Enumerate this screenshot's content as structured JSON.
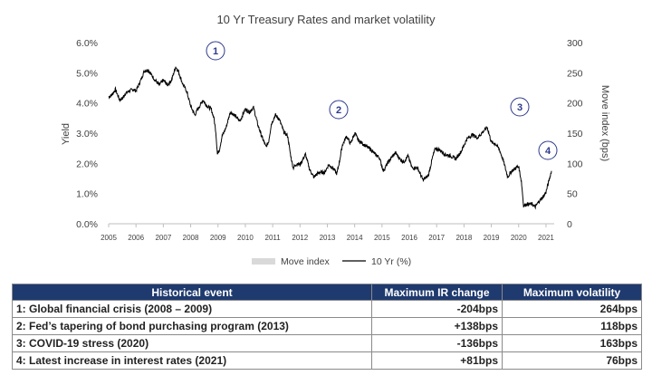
{
  "chart_data": {
    "type": "line",
    "title": "10 Yr Treasury Rates and market volatility",
    "ylabel": "Yield",
    "y2label": "Move index (bps)",
    "xlabel": "",
    "ylim": [
      0,
      6
    ],
    "y2lim": [
      0,
      300
    ],
    "xlim": [
      2005.0,
      2021.3
    ],
    "x_ticks": [
      "2005",
      "2006",
      "2007",
      "2008",
      "2009",
      "2010",
      "2011",
      "2012",
      "2013",
      "2014",
      "2015",
      "2016",
      "2017",
      "2018",
      "2019",
      "2020",
      "2021"
    ],
    "y_ticks": [
      "0.0%",
      "1.0%",
      "2.0%",
      "3.0%",
      "4.0%",
      "5.0%",
      "6.0%"
    ],
    "y2_ticks": [
      "0",
      "50",
      "100",
      "150",
      "200",
      "250",
      "300"
    ],
    "legend": [
      "Move index",
      "10 Yr (%)"
    ],
    "legend_position": "bottom",
    "series": [
      {
        "name": "10 Yr (%)",
        "color": "#000000",
        "points": [
          [
            2005.0,
            4.2
          ],
          [
            2005.1,
            4.25
          ],
          [
            2005.25,
            4.45
          ],
          [
            2005.4,
            4.1
          ],
          [
            2005.5,
            4.15
          ],
          [
            2005.6,
            4.3
          ],
          [
            2005.75,
            4.4
          ],
          [
            2005.9,
            4.45
          ],
          [
            2006.0,
            4.4
          ],
          [
            2006.15,
            4.7
          ],
          [
            2006.3,
            5.05
          ],
          [
            2006.45,
            5.1
          ],
          [
            2006.55,
            4.95
          ],
          [
            2006.7,
            4.75
          ],
          [
            2006.85,
            4.6
          ],
          [
            2007.0,
            4.75
          ],
          [
            2007.15,
            4.6
          ],
          [
            2007.3,
            4.75
          ],
          [
            2007.45,
            5.2
          ],
          [
            2007.55,
            5.05
          ],
          [
            2007.7,
            4.65
          ],
          [
            2007.85,
            4.4
          ],
          [
            2008.0,
            3.9
          ],
          [
            2008.15,
            3.6
          ],
          [
            2008.3,
            3.85
          ],
          [
            2008.45,
            4.1
          ],
          [
            2008.6,
            3.9
          ],
          [
            2008.75,
            3.8
          ],
          [
            2008.85,
            3.5
          ],
          [
            2008.92,
            3.05
          ],
          [
            2008.98,
            2.3
          ],
          [
            2009.05,
            2.45
          ],
          [
            2009.15,
            2.9
          ],
          [
            2009.3,
            3.2
          ],
          [
            2009.45,
            3.7
          ],
          [
            2009.6,
            3.6
          ],
          [
            2009.8,
            3.4
          ],
          [
            2010.0,
            3.8
          ],
          [
            2010.15,
            3.7
          ],
          [
            2010.3,
            3.85
          ],
          [
            2010.45,
            3.3
          ],
          [
            2010.6,
            2.9
          ],
          [
            2010.75,
            2.55
          ],
          [
            2010.85,
            2.7
          ],
          [
            2010.95,
            3.3
          ],
          [
            2011.1,
            3.6
          ],
          [
            2011.25,
            3.45
          ],
          [
            2011.4,
            3.05
          ],
          [
            2011.55,
            2.9
          ],
          [
            2011.65,
            2.3
          ],
          [
            2011.75,
            1.85
          ],
          [
            2011.9,
            2.0
          ],
          [
            2012.0,
            1.95
          ],
          [
            2012.2,
            2.3
          ],
          [
            2012.35,
            1.8
          ],
          [
            2012.5,
            1.55
          ],
          [
            2012.7,
            1.7
          ],
          [
            2012.9,
            1.7
          ],
          [
            2013.05,
            1.95
          ],
          [
            2013.2,
            1.85
          ],
          [
            2013.35,
            1.65
          ],
          [
            2013.45,
            2.1
          ],
          [
            2013.55,
            2.6
          ],
          [
            2013.7,
            2.9
          ],
          [
            2013.85,
            2.65
          ],
          [
            2014.0,
            3.0
          ],
          [
            2014.15,
            2.75
          ],
          [
            2014.3,
            2.65
          ],
          [
            2014.45,
            2.55
          ],
          [
            2014.6,
            2.45
          ],
          [
            2014.75,
            2.3
          ],
          [
            2014.9,
            2.2
          ],
          [
            2015.05,
            1.75
          ],
          [
            2015.2,
            2.0
          ],
          [
            2015.35,
            2.2
          ],
          [
            2015.5,
            2.35
          ],
          [
            2015.65,
            2.15
          ],
          [
            2015.8,
            2.05
          ],
          [
            2015.95,
            2.25
          ],
          [
            2016.1,
            1.85
          ],
          [
            2016.3,
            1.85
          ],
          [
            2016.5,
            1.45
          ],
          [
            2016.7,
            1.6
          ],
          [
            2016.85,
            2.2
          ],
          [
            2016.95,
            2.5
          ],
          [
            2017.1,
            2.45
          ],
          [
            2017.3,
            2.3
          ],
          [
            2017.5,
            2.25
          ],
          [
            2017.7,
            2.15
          ],
          [
            2017.9,
            2.4
          ],
          [
            2018.1,
            2.8
          ],
          [
            2018.3,
            2.95
          ],
          [
            2018.5,
            2.85
          ],
          [
            2018.7,
            3.05
          ],
          [
            2018.85,
            3.2
          ],
          [
            2019.0,
            2.7
          ],
          [
            2019.15,
            2.65
          ],
          [
            2019.3,
            2.45
          ],
          [
            2019.45,
            2.05
          ],
          [
            2019.6,
            1.55
          ],
          [
            2019.75,
            1.75
          ],
          [
            2019.9,
            1.85
          ],
          [
            2020.0,
            1.9
          ],
          [
            2020.1,
            1.4
          ],
          [
            2020.18,
            0.6
          ],
          [
            2020.3,
            0.65
          ],
          [
            2020.5,
            0.65
          ],
          [
            2020.6,
            0.55
          ],
          [
            2020.75,
            0.75
          ],
          [
            2020.9,
            0.9
          ],
          [
            2021.0,
            1.05
          ],
          [
            2021.1,
            1.4
          ],
          [
            2021.2,
            1.75
          ]
        ]
      }
    ],
    "annotations": [
      "1",
      "2",
      "3",
      "4"
    ]
  },
  "table": {
    "headers": [
      "Historical event",
      "Maximum IR change",
      "Maximum volatility"
    ],
    "rows": [
      [
        "1: Global financial crisis (2008 – 2009)",
        "-204bps",
        "264bps"
      ],
      [
        "2: Fed’s tapering of bond purchasing program (2013)",
        "+138bps",
        "118bps"
      ],
      [
        "3: COVID-19 stress (2020)",
        "-136bps",
        "163bps"
      ],
      [
        "4: Latest increase in interest rates (2021)",
        "+81bps",
        "76bps"
      ]
    ]
  },
  "colors": {
    "header_bg": "#1f3a6e",
    "annotation": "#2e3a8c",
    "line": "#000000",
    "move_legend": "#d9d9d9"
  }
}
